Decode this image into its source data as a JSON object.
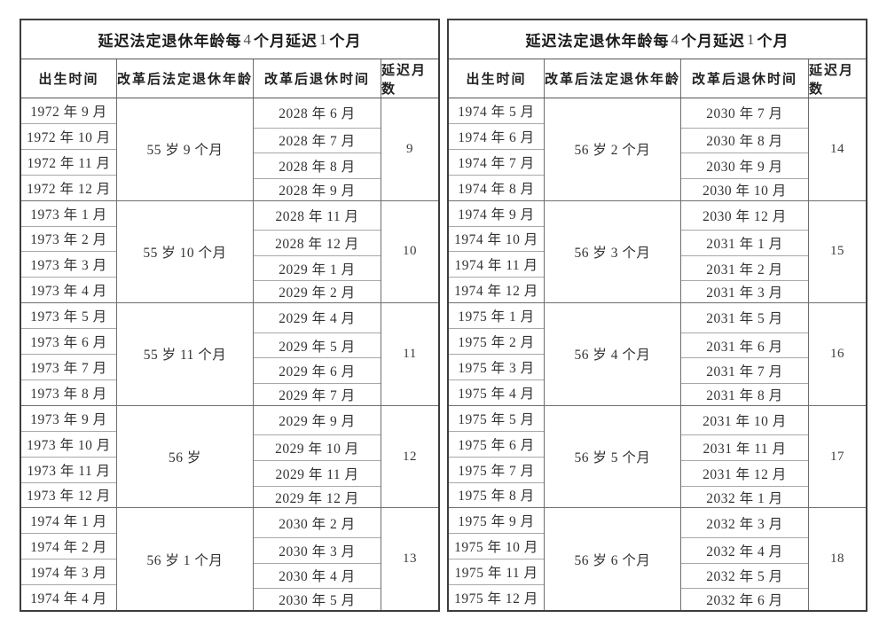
{
  "tables": [
    {
      "title_parts": [
        "延迟法定退休年龄每 ",
        "4",
        " 个月延迟 ",
        "1",
        " 个月"
      ],
      "headers": [
        "出生时间",
        "改革后法定退休年龄",
        "改革后退休时间",
        "延迟月数"
      ],
      "blocks": [
        {
          "births": [
            "1972 年 9 月",
            "1972 年 10 月",
            "1972 年 11 月",
            "1972 年 12 月"
          ],
          "age": "55 岁 9 个月",
          "times": [
            "2028 年 6 月",
            "2028 年 7 月",
            "2028 年 8 月",
            "2028 年 9 月"
          ],
          "delay": "9"
        },
        {
          "births": [
            "1973 年 1 月",
            "1973 年 2 月",
            "1973 年 3 月",
            "1973 年 4 月"
          ],
          "age": "55 岁 10 个月",
          "times": [
            "2028 年 11 月",
            "2028 年 12 月",
            "2029 年 1 月",
            "2029 年 2 月"
          ],
          "delay": "10"
        },
        {
          "births": [
            "1973 年 5 月",
            "1973 年 6 月",
            "1973 年 7 月",
            "1973 年 8 月"
          ],
          "age": "55 岁 11 个月",
          "times": [
            "2029 年 4 月",
            "2029 年 5 月",
            "2029 年 6 月",
            "2029 年 7 月"
          ],
          "delay": "11"
        },
        {
          "births": [
            "1973 年 9 月",
            "1973 年 10 月",
            "1973 年 11 月",
            "1973 年 12 月"
          ],
          "age": "56 岁",
          "times": [
            "2029 年 9 月",
            "2029 年 10 月",
            "2029 年 11 月",
            "2029 年 12 月"
          ],
          "delay": "12"
        },
        {
          "births": [
            "1974 年 1 月",
            "1974 年 2 月",
            "1974 年 3 月",
            "1974 年 4 月"
          ],
          "age": "56 岁 1 个月",
          "times": [
            "2030 年 2 月",
            "2030 年 3 月",
            "2030 年 4 月",
            "2030 年 5 月"
          ],
          "delay": "13"
        }
      ]
    },
    {
      "title_parts": [
        "延迟法定退休年龄每 ",
        "4",
        " 个月延迟 ",
        "1",
        " 个月"
      ],
      "headers": [
        "出生时间",
        "改革后法定退休年龄",
        "改革后退休时间",
        "延迟月数"
      ],
      "blocks": [
        {
          "births": [
            "1974 年 5 月",
            "1974 年 6 月",
            "1974 年 7 月",
            "1974 年 8 月"
          ],
          "age": "56 岁 2 个月",
          "times": [
            "2030 年 7 月",
            "2030 年 8 月",
            "2030 年 9 月",
            "2030 年 10 月"
          ],
          "delay": "14"
        },
        {
          "births": [
            "1974 年 9 月",
            "1974 年 10 月",
            "1974 年 11 月",
            "1974 年 12 月"
          ],
          "age": "56 岁 3 个月",
          "times": [
            "2030 年 12 月",
            "2031 年 1 月",
            "2031 年 2 月",
            "2031 年 3 月"
          ],
          "delay": "15"
        },
        {
          "births": [
            "1975 年 1 月",
            "1975 年 2 月",
            "1975 年 3 月",
            "1975 年 4 月"
          ],
          "age": "56 岁 4 个月",
          "times": [
            "2031 年 5 月",
            "2031 年 6 月",
            "2031 年 7 月",
            "2031 年 8 月"
          ],
          "delay": "16"
        },
        {
          "births": [
            "1975 年 5 月",
            "1975 年 6 月",
            "1975 年 7 月",
            "1975 年 8 月"
          ],
          "age": "56 岁 5 个月",
          "times": [
            "2031 年 10 月",
            "2031 年 11 月",
            "2031 年 12 月",
            "2032 年 1 月"
          ],
          "delay": "17"
        },
        {
          "births": [
            "1975 年 9 月",
            "1975 年 10 月",
            "1975 年 11 月",
            "1975 年 12 月"
          ],
          "age": "56 岁 6 个月",
          "times": [
            "2032 年 3 月",
            "2032 年 4 月",
            "2032 年 5 月",
            "2032 年 6 月"
          ],
          "delay": "18"
        }
      ]
    }
  ]
}
